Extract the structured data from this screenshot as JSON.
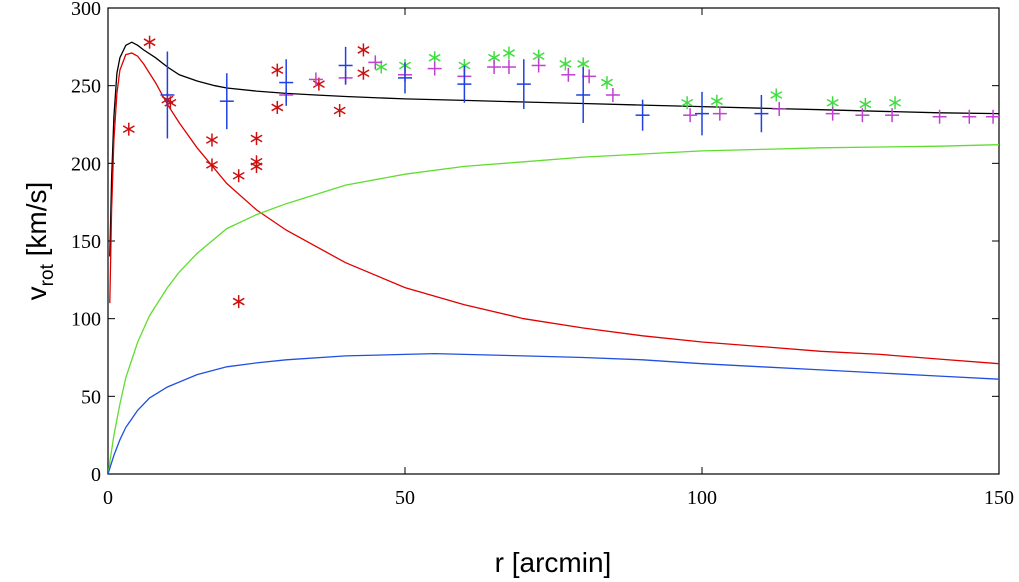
{
  "chart_data": {
    "type": "scatter",
    "title": "",
    "xlabel": "r [arcmin]",
    "ylabel": {
      "main": "v",
      "subscript": "rot",
      "units": " [km/s]"
    },
    "xlim": [
      0,
      150
    ],
    "ylim": [
      0,
      300
    ],
    "xticks": [
      0,
      50,
      100,
      150
    ],
    "yticks": [
      0,
      50,
      100,
      150,
      200,
      250,
      300
    ],
    "grid": false,
    "legend": "none",
    "curves": [
      {
        "name": "total",
        "color": "#000000",
        "x": [
          0.3,
          0.6,
          1,
          1.5,
          2,
          3,
          4,
          5,
          6,
          8,
          10,
          12,
          15,
          18,
          20,
          25,
          30,
          35,
          40,
          50,
          60,
          70,
          80,
          90,
          100,
          110,
          120,
          130,
          140,
          150
        ],
        "y": [
          140,
          190,
          230,
          258,
          268,
          276,
          278,
          276,
          273,
          268,
          262,
          257,
          253,
          250,
          248.5,
          246.5,
          245,
          244,
          243,
          241.5,
          240.5,
          239.5,
          238.5,
          237.5,
          236.5,
          235.5,
          234.5,
          233.5,
          232.5,
          232
        ]
      },
      {
        "name": "red-component",
        "color": "#e00000",
        "x": [
          0.3,
          0.6,
          1,
          1.5,
          2,
          3,
          4,
          5,
          6,
          8,
          10,
          12,
          15,
          20,
          25,
          30,
          40,
          50,
          60,
          70,
          80,
          90,
          100,
          110,
          120,
          130,
          140,
          150
        ],
        "y": [
          110,
          170,
          215,
          245,
          260,
          270,
          271,
          269,
          264,
          252,
          238,
          226,
          210,
          187,
          170,
          157,
          136,
          120,
          109,
          100,
          94,
          89,
          85,
          82,
          79,
          77,
          74,
          71
        ]
      },
      {
        "name": "green-component",
        "color": "#60dd30",
        "x": [
          0,
          1,
          2,
          3,
          5,
          7,
          10,
          12,
          15,
          20,
          25,
          30,
          40,
          50,
          60,
          70,
          80,
          90,
          100,
          110,
          120,
          130,
          140,
          150
        ],
        "y": [
          0,
          25,
          45,
          62,
          85,
          102,
          120,
          130,
          142,
          158,
          167,
          174,
          186,
          193,
          198,
          201,
          204,
          206,
          208,
          209,
          210,
          210.5,
          211,
          212
        ]
      },
      {
        "name": "blue-component",
        "color": "#2050e0",
        "x": [
          0,
          1,
          2,
          3,
          5,
          7,
          10,
          15,
          20,
          25,
          30,
          40,
          50,
          55,
          60,
          70,
          80,
          90,
          100,
          110,
          120,
          130,
          140,
          150
        ],
        "y": [
          0,
          12,
          22,
          30,
          41,
          49,
          56,
          64,
          69,
          71.5,
          73.5,
          76,
          77,
          77.5,
          77,
          76,
          75,
          73.5,
          71,
          69,
          67,
          65,
          63,
          61
        ]
      }
    ],
    "series": [
      {
        "name": "red-stars",
        "marker": "asterisk",
        "color": "#cc1010",
        "points": [
          {
            "x": 3.5,
            "y": 222
          },
          {
            "x": 7,
            "y": 278
          },
          {
            "x": 10,
            "y": 241
          },
          {
            "x": 10.5,
            "y": 239
          },
          {
            "x": 17.5,
            "y": 215
          },
          {
            "x": 17.5,
            "y": 199
          },
          {
            "x": 22,
            "y": 192
          },
          {
            "x": 22,
            "y": 111
          },
          {
            "x": 25,
            "y": 216
          },
          {
            "x": 25,
            "y": 201
          },
          {
            "x": 25,
            "y": 198
          },
          {
            "x": 28.5,
            "y": 260
          },
          {
            "x": 28.5,
            "y": 236
          },
          {
            "x": 35.5,
            "y": 251
          },
          {
            "x": 39,
            "y": 234
          },
          {
            "x": 43,
            "y": 273
          },
          {
            "x": 43,
            "y": 258
          }
        ]
      },
      {
        "name": "green-stars",
        "marker": "asterisk",
        "color": "#40dd40",
        "points": [
          {
            "x": 46,
            "y": 262
          },
          {
            "x": 50,
            "y": 263
          },
          {
            "x": 55,
            "y": 268
          },
          {
            "x": 60,
            "y": 263
          },
          {
            "x": 65,
            "y": 268
          },
          {
            "x": 67.5,
            "y": 271
          },
          {
            "x": 72.5,
            "y": 269
          },
          {
            "x": 77,
            "y": 264
          },
          {
            "x": 80,
            "y": 264
          },
          {
            "x": 84,
            "y": 252
          },
          {
            "x": 97.5,
            "y": 239
          },
          {
            "x": 102.5,
            "y": 240
          },
          {
            "x": 112.5,
            "y": 244
          },
          {
            "x": 122,
            "y": 239
          },
          {
            "x": 127.5,
            "y": 238
          },
          {
            "x": 132.5,
            "y": 239
          }
        ]
      },
      {
        "name": "magenta-plus",
        "marker": "plus",
        "color": "#c040d0",
        "points": [
          {
            "x": 30,
            "y": 244
          },
          {
            "x": 35,
            "y": 254
          },
          {
            "x": 40,
            "y": 255
          },
          {
            "x": 45,
            "y": 265
          },
          {
            "x": 50,
            "y": 257
          },
          {
            "x": 55,
            "y": 261
          },
          {
            "x": 60,
            "y": 256
          },
          {
            "x": 65,
            "y": 262
          },
          {
            "x": 67.5,
            "y": 262
          },
          {
            "x": 72.5,
            "y": 263
          },
          {
            "x": 77.5,
            "y": 257
          },
          {
            "x": 81,
            "y": 256
          },
          {
            "x": 85,
            "y": 244
          },
          {
            "x": 98,
            "y": 231
          },
          {
            "x": 103,
            "y": 232
          },
          {
            "x": 113,
            "y": 235
          },
          {
            "x": 122,
            "y": 232
          },
          {
            "x": 127,
            "y": 231
          },
          {
            "x": 132,
            "y": 231
          },
          {
            "x": 140,
            "y": 230
          },
          {
            "x": 145,
            "y": 230
          },
          {
            "x": 149,
            "y": 230
          }
        ]
      },
      {
        "name": "blue-errorbars",
        "marker": "plus",
        "color": "#2040e0",
        "points": [
          {
            "x": 10,
            "y": 244,
            "err": 28
          },
          {
            "x": 20,
            "y": 240,
            "err": 18
          },
          {
            "x": 30,
            "y": 252,
            "err": 15
          },
          {
            "x": 40,
            "y": 263,
            "err": 12
          },
          {
            "x": 50,
            "y": 255,
            "err": 10
          },
          {
            "x": 60,
            "y": 251,
            "err": 12
          },
          {
            "x": 70,
            "y": 251,
            "err": 16
          },
          {
            "x": 80,
            "y": 244,
            "err": 18
          },
          {
            "x": 90,
            "y": 231,
            "err": 10
          },
          {
            "x": 100,
            "y": 232,
            "err": 14
          },
          {
            "x": 110,
            "y": 232,
            "err": 12
          }
        ]
      }
    ]
  }
}
